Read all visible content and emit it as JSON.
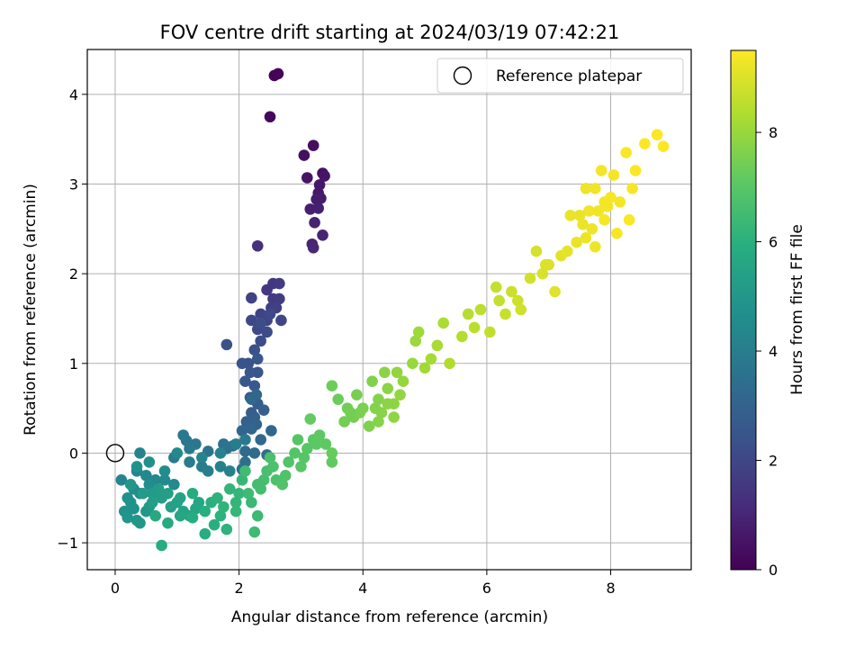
{
  "chart_data": {
    "type": "scatter",
    "title": "FOV centre drift starting at 2024/03/19 07:42:21",
    "xlabel": "Angular distance from reference (arcmin)",
    "ylabel": "Rotation from reference (arcmin)",
    "xlim": [
      -0.45,
      9.3
    ],
    "ylim": [
      -1.3,
      4.5
    ],
    "xticks": [
      0,
      2,
      4,
      6,
      8
    ],
    "yticks": [
      -1,
      0,
      1,
      2,
      3,
      4
    ],
    "xtick_labels": [
      "0",
      "2",
      "4",
      "6",
      "8"
    ],
    "ytick_labels": [
      "−1",
      "0",
      "1",
      "2",
      "3",
      "4"
    ],
    "grid": true,
    "colormap": "viridis",
    "colorbar": {
      "label": "Hours from first FF file",
      "range": [
        0,
        9.5
      ],
      "ticks": [
        0,
        2,
        4,
        6,
        8
      ],
      "tick_labels": [
        "0",
        "2",
        "4",
        "6",
        "8"
      ]
    },
    "legend": {
      "position": "top-right",
      "entries": [
        "Reference platepar"
      ]
    },
    "reference_point": {
      "x": 0,
      "y": 0
    },
    "points": [
      [
        2.57,
        4.21,
        0.05
      ],
      [
        2.63,
        4.23,
        0.1
      ],
      [
        2.5,
        3.75,
        0.2
      ],
      [
        3.2,
        3.43,
        0.35
      ],
      [
        3.05,
        3.32,
        0.4
      ],
      [
        3.35,
        3.12,
        0.45
      ],
      [
        3.1,
        3.07,
        0.5
      ],
      [
        3.38,
        3.09,
        0.55
      ],
      [
        3.3,
        2.99,
        0.6
      ],
      [
        3.28,
        2.9,
        0.65
      ],
      [
        3.32,
        2.84,
        0.7
      ],
      [
        3.25,
        2.83,
        0.75
      ],
      [
        3.15,
        2.72,
        0.8
      ],
      [
        3.28,
        2.73,
        0.85
      ],
      [
        3.22,
        2.57,
        0.9
      ],
      [
        3.35,
        2.43,
        0.95
      ],
      [
        3.18,
        2.33,
        1.0
      ],
      [
        3.2,
        2.29,
        1.05
      ],
      [
        2.3,
        2.31,
        1.3
      ],
      [
        2.45,
        1.82,
        1.5
      ],
      [
        2.55,
        1.89,
        1.55
      ],
      [
        2.65,
        1.89,
        1.6
      ],
      [
        2.55,
        1.72,
        1.65
      ],
      [
        2.65,
        1.72,
        1.7
      ],
      [
        2.52,
        1.62,
        1.75
      ],
      [
        2.6,
        1.62,
        1.8
      ],
      [
        2.2,
        1.73,
        1.85
      ],
      [
        2.35,
        1.55,
        1.9
      ],
      [
        2.45,
        1.48,
        1.95
      ],
      [
        2.68,
        1.48,
        2.0
      ],
      [
        2.2,
        1.48,
        2.05
      ],
      [
        2.3,
        1.38,
        2.1
      ],
      [
        2.45,
        1.35,
        2.15
      ],
      [
        2.35,
        1.25,
        2.2
      ],
      [
        1.8,
        1.21,
        2.3
      ],
      [
        2.25,
        1.15,
        2.35
      ],
      [
        2.15,
        1.0,
        2.4
      ],
      [
        2.05,
        1.0,
        2.45
      ],
      [
        2.3,
        0.9,
        2.5
      ],
      [
        2.18,
        0.9,
        2.55
      ],
      [
        2.1,
        0.8,
        2.6
      ],
      [
        2.25,
        0.75,
        2.65
      ],
      [
        2.18,
        0.62,
        2.7
      ],
      [
        2.3,
        0.55,
        2.75
      ],
      [
        2.2,
        0.45,
        2.8
      ],
      [
        2.4,
        0.48,
        2.85
      ],
      [
        2.25,
        0.4,
        2.9
      ],
      [
        2.12,
        0.35,
        2.95
      ],
      [
        2.28,
        0.32,
        3.0
      ],
      [
        2.05,
        0.25,
        3.05
      ],
      [
        2.2,
        0.27,
        3.1
      ],
      [
        2.52,
        0.25,
        3.15
      ],
      [
        2.35,
        0.15,
        3.2
      ],
      [
        2.1,
        0.02,
        3.25
      ],
      [
        2.25,
        0.0,
        3.3
      ],
      [
        2.45,
        -0.02,
        3.35
      ],
      [
        1.9,
        0.08,
        3.4
      ],
      [
        2.1,
        -0.1,
        3.45
      ],
      [
        2.05,
        -0.18,
        3.5
      ],
      [
        1.8,
        0.05,
        3.55
      ],
      [
        1.75,
        0.1,
        3.6
      ],
      [
        1.5,
        0.02,
        3.65
      ],
      [
        1.3,
        0.1,
        3.7
      ],
      [
        1.15,
        0.14,
        3.75
      ],
      [
        1.1,
        0.2,
        3.8
      ],
      [
        1.2,
        0.05,
        3.85
      ],
      [
        0.95,
        -0.05,
        3.9
      ],
      [
        1.2,
        -0.1,
        3.95
      ],
      [
        1.4,
        -0.15,
        4.0
      ],
      [
        1.5,
        -0.2,
        4.05
      ],
      [
        1.7,
        -0.15,
        4.1
      ],
      [
        1.85,
        -0.2,
        4.15
      ],
      [
        0.4,
        0.0,
        4.2
      ],
      [
        0.1,
        -0.3,
        4.25
      ],
      [
        0.35,
        -0.2,
        4.3
      ],
      [
        0.5,
        -0.25,
        4.35
      ],
      [
        0.65,
        -0.3,
        4.4
      ],
      [
        0.8,
        -0.3,
        4.45
      ],
      [
        0.95,
        -0.35,
        4.5
      ],
      [
        0.55,
        -0.35,
        4.55
      ],
      [
        0.3,
        -0.4,
        4.6
      ],
      [
        0.4,
        -0.45,
        4.65
      ],
      [
        0.2,
        -0.5,
        4.7
      ],
      [
        0.25,
        -0.55,
        4.75
      ],
      [
        0.3,
        -0.62,
        4.8
      ],
      [
        0.15,
        -0.65,
        4.85
      ],
      [
        0.2,
        -0.72,
        4.9
      ],
      [
        0.35,
        -0.75,
        4.95
      ],
      [
        0.4,
        -0.78,
        5.0
      ],
      [
        0.5,
        -0.65,
        5.05
      ],
      [
        0.55,
        -0.6,
        5.1
      ],
      [
        0.6,
        -0.45,
        5.15
      ],
      [
        0.7,
        -0.4,
        5.2
      ],
      [
        0.75,
        -0.5,
        5.25
      ],
      [
        0.85,
        -0.45,
        5.3
      ],
      [
        0.9,
        -0.6,
        5.35
      ],
      [
        1.0,
        -0.55,
        5.4
      ],
      [
        1.05,
        -0.5,
        5.45
      ],
      [
        1.1,
        -0.65,
        5.5
      ],
      [
        1.2,
        -0.7,
        5.55
      ],
      [
        1.3,
        -0.62,
        5.6
      ],
      [
        1.35,
        -0.55,
        5.65
      ],
      [
        0.65,
        -0.7,
        5.7
      ],
      [
        0.85,
        -0.78,
        5.75
      ],
      [
        0.75,
        -1.03,
        5.8
      ],
      [
        1.25,
        -0.72,
        5.85
      ],
      [
        1.45,
        -0.9,
        5.9
      ],
      [
        1.6,
        -0.8,
        5.95
      ],
      [
        1.55,
        -0.55,
        6.0
      ],
      [
        1.7,
        -0.7,
        6.05
      ],
      [
        1.8,
        -0.85,
        6.1
      ],
      [
        1.75,
        -0.6,
        6.15
      ],
      [
        1.95,
        -0.55,
        6.2
      ],
      [
        2.0,
        -0.45,
        6.25
      ],
      [
        2.05,
        -0.3,
        6.3
      ],
      [
        2.2,
        -0.55,
        6.35
      ],
      [
        2.3,
        -0.7,
        6.4
      ],
      [
        2.25,
        -0.88,
        6.45
      ],
      [
        2.1,
        -0.2,
        6.5
      ],
      [
        2.3,
        -0.35,
        6.55
      ],
      [
        2.4,
        -0.3,
        6.6
      ],
      [
        2.45,
        -0.2,
        6.65
      ],
      [
        2.5,
        -0.05,
        6.7
      ],
      [
        2.6,
        -0.3,
        6.75
      ],
      [
        2.7,
        -0.35,
        6.8
      ],
      [
        2.8,
        -0.1,
        6.85
      ],
      [
        2.9,
        0.0,
        6.9
      ],
      [
        3.0,
        -0.15,
        6.95
      ],
      [
        3.1,
        0.05,
        7.0
      ],
      [
        3.2,
        0.15,
        7.05
      ],
      [
        3.3,
        0.2,
        7.1
      ],
      [
        3.5,
        -0.1,
        7.15
      ],
      [
        3.15,
        0.38,
        7.2
      ],
      [
        3.5,
        0.0,
        7.25
      ],
      [
        3.6,
        0.6,
        7.3
      ],
      [
        3.5,
        0.75,
        7.35
      ],
      [
        3.75,
        0.5,
        7.4
      ],
      [
        3.85,
        0.4,
        7.45
      ],
      [
        3.9,
        0.65,
        7.5
      ],
      [
        4.0,
        0.5,
        7.55
      ],
      [
        4.1,
        0.3,
        7.6
      ],
      [
        4.15,
        0.8,
        7.65
      ],
      [
        4.25,
        0.6,
        7.7
      ],
      [
        4.3,
        0.45,
        7.75
      ],
      [
        4.4,
        0.72,
        7.8
      ],
      [
        4.5,
        0.55,
        7.85
      ],
      [
        4.55,
        0.9,
        7.9
      ],
      [
        4.65,
        0.8,
        7.95
      ],
      [
        4.8,
        1.0,
        8.0
      ],
      [
        4.85,
        1.25,
        8.05
      ],
      [
        4.9,
        1.35,
        8.1
      ],
      [
        5.0,
        0.95,
        8.15
      ],
      [
        5.1,
        1.05,
        8.2
      ],
      [
        5.2,
        1.2,
        8.25
      ],
      [
        5.3,
        1.45,
        8.3
      ],
      [
        5.4,
        1.0,
        8.35
      ],
      [
        5.6,
        1.3,
        8.4
      ],
      [
        5.7,
        1.55,
        8.45
      ],
      [
        5.8,
        1.4,
        8.5
      ],
      [
        5.9,
        1.6,
        8.55
      ],
      [
        6.05,
        1.35,
        8.6
      ],
      [
        6.15,
        1.85,
        8.65
      ],
      [
        6.3,
        1.55,
        8.7
      ],
      [
        6.4,
        1.8,
        8.75
      ],
      [
        6.55,
        1.6,
        8.8
      ],
      [
        6.7,
        1.95,
        8.85
      ],
      [
        6.8,
        2.25,
        8.9
      ],
      [
        6.9,
        2.0,
        8.95
      ],
      [
        7.0,
        2.1,
        9.0
      ],
      [
        7.1,
        1.8,
        9.05
      ],
      [
        7.2,
        2.2,
        9.1
      ],
      [
        7.3,
        2.25,
        9.15
      ],
      [
        7.45,
        2.35,
        9.2
      ],
      [
        7.55,
        2.55,
        9.25
      ],
      [
        7.65,
        2.7,
        9.3
      ],
      [
        7.75,
        2.95,
        9.32
      ],
      [
        7.85,
        3.15,
        9.35
      ],
      [
        7.9,
        2.6,
        9.38
      ],
      [
        8.0,
        2.85,
        9.4
      ],
      [
        8.1,
        2.45,
        9.42
      ],
      [
        8.25,
        3.35,
        9.44
      ],
      [
        8.3,
        2.6,
        9.46
      ],
      [
        8.4,
        3.15,
        9.47
      ],
      [
        8.55,
        3.45,
        9.48
      ],
      [
        8.75,
        3.55,
        9.49
      ],
      [
        8.85,
        3.42,
        9.5
      ],
      [
        7.6,
        2.4,
        9.25
      ],
      [
        7.75,
        2.3,
        9.28
      ],
      [
        7.95,
        2.75,
        9.33
      ],
      [
        8.15,
        2.8,
        9.36
      ],
      [
        8.35,
        2.95,
        9.43
      ],
      [
        7.35,
        2.65,
        9.2
      ],
      [
        7.7,
        2.5,
        9.27
      ],
      [
        7.8,
        2.7,
        9.3
      ],
      [
        7.9,
        2.8,
        9.34
      ],
      [
        8.05,
        3.1,
        9.37
      ],
      [
        7.5,
        2.65,
        9.22
      ],
      [
        7.6,
        2.95,
        9.26
      ],
      [
        6.2,
        1.7,
        8.65
      ],
      [
        6.5,
        1.7,
        8.78
      ],
      [
        6.95,
        2.1,
        8.98
      ],
      [
        4.25,
        0.35,
        7.72
      ],
      [
        4.2,
        0.5,
        7.68
      ],
      [
        3.95,
        0.45,
        7.56
      ],
      [
        4.4,
        0.55,
        7.82
      ],
      [
        4.5,
        0.4,
        7.86
      ],
      [
        4.6,
        0.65,
        7.92
      ],
      [
        4.35,
        0.9,
        7.78
      ],
      [
        3.7,
        0.35,
        7.42
      ],
      [
        3.8,
        0.45,
        7.46
      ],
      [
        2.95,
        0.15,
        6.92
      ],
      [
        3.05,
        -0.05,
        6.96
      ],
      [
        3.25,
        0.1,
        7.06
      ],
      [
        3.4,
        0.1,
        7.12
      ],
      [
        2.75,
        -0.25,
        6.82
      ],
      [
        2.55,
        -0.15,
        6.72
      ],
      [
        2.35,
        -0.4,
        6.58
      ],
      [
        2.15,
        -0.45,
        6.45
      ],
      [
        1.95,
        -0.65,
        6.28
      ],
      [
        1.85,
        -0.4,
        6.22
      ],
      [
        1.65,
        -0.5,
        6.08
      ],
      [
        1.45,
        -0.65,
        5.95
      ],
      [
        1.25,
        -0.45,
        5.8
      ],
      [
        1.05,
        -0.7,
        5.62
      ],
      [
        0.6,
        -0.55,
        5.3
      ],
      [
        0.45,
        -0.45,
        5.15
      ],
      [
        0.25,
        -0.35,
        5.0
      ],
      [
        0.35,
        -0.15,
        4.8
      ],
      [
        0.55,
        -0.1,
        4.7
      ],
      [
        0.8,
        -0.2,
        4.62
      ],
      [
        1.0,
        0.0,
        4.5
      ],
      [
        1.4,
        -0.05,
        4.3
      ],
      [
        1.7,
        0.0,
        4.2
      ],
      [
        1.95,
        0.1,
        4.0
      ],
      [
        2.1,
        0.15,
        3.85
      ],
      [
        2.2,
        0.6,
        3.2
      ],
      [
        2.28,
        0.65,
        3.15
      ],
      [
        2.3,
        1.05,
        2.6
      ],
      [
        2.35,
        1.45,
        2.25
      ],
      [
        2.5,
        1.55,
        2.1
      ]
    ]
  }
}
